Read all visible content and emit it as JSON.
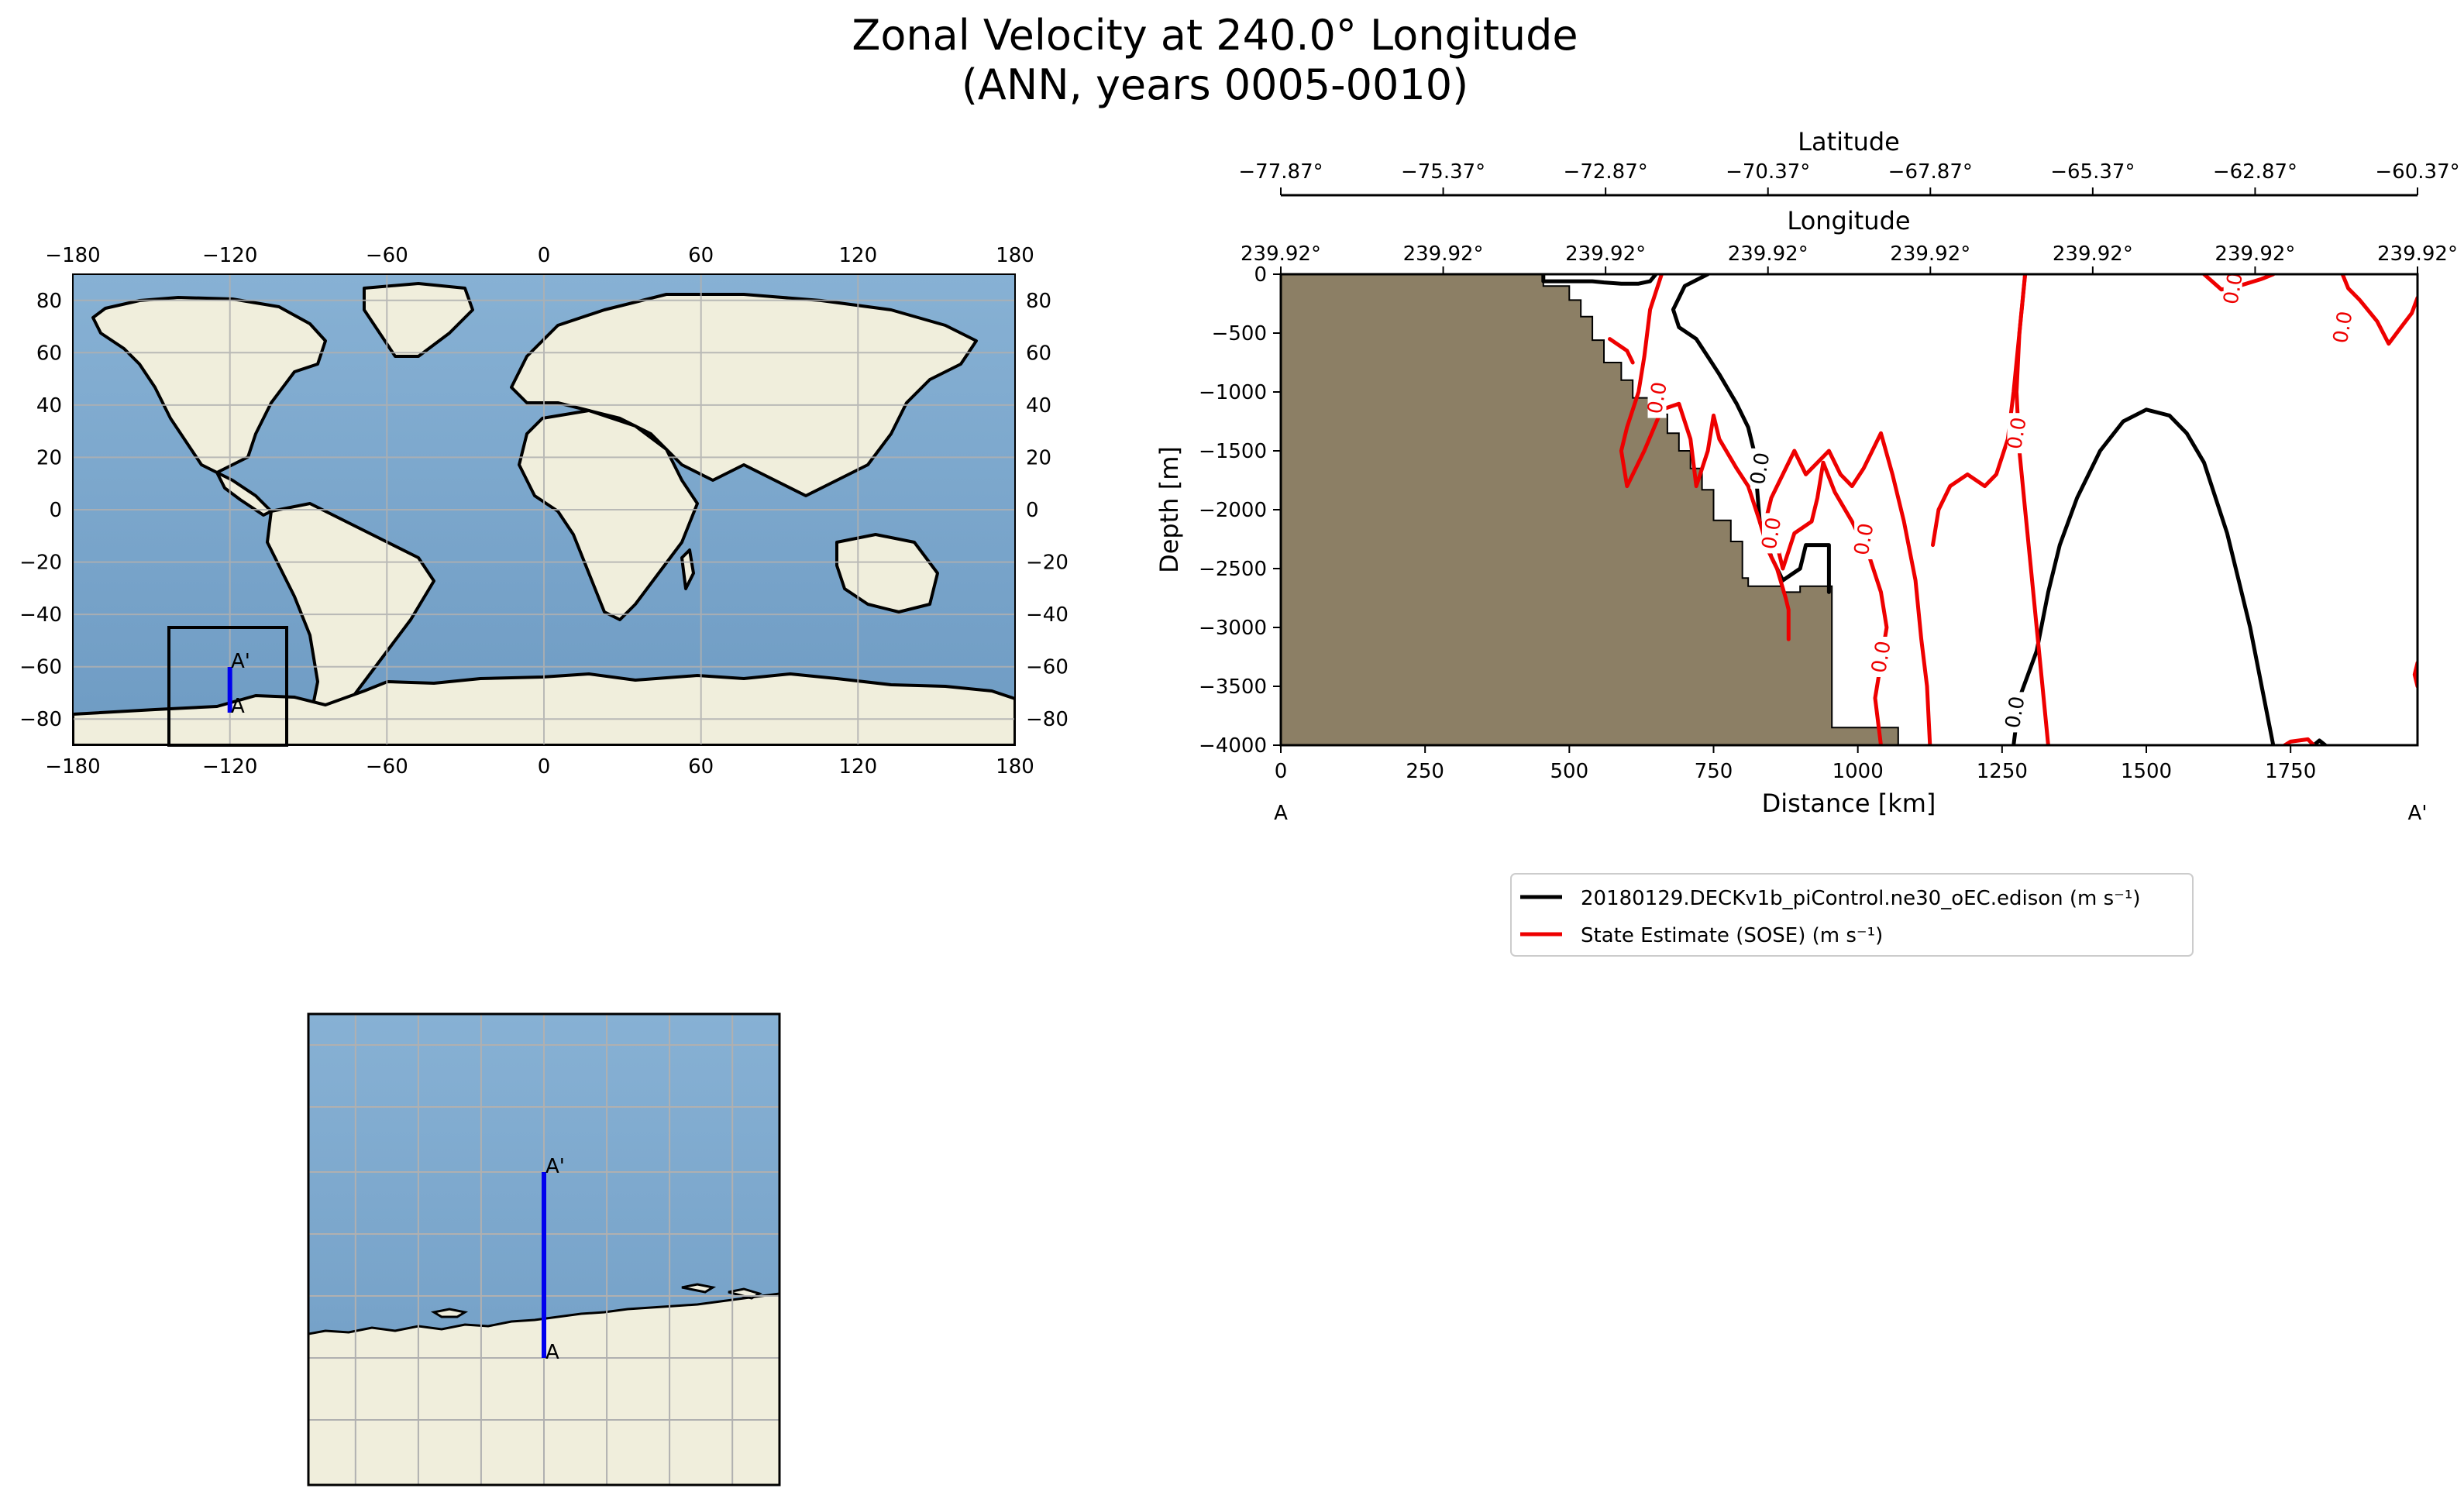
{
  "title": {
    "line1": "Zonal Velocity at 240.0° Longitude",
    "line2": "(ANN, years 0005-0010)"
  },
  "colors": {
    "ocean": "#7aa6cc",
    "land": "#f0eedc",
    "bathymetry": "#8c7f65",
    "transect": "#0000ee",
    "model_line": "#000000",
    "obs_line": "#ee0000",
    "grid": "#b0b0b0"
  },
  "chart_data": [
    {
      "type": "map",
      "name": "global-map",
      "projection": "PlateCarree",
      "xlim": [
        -180,
        180
      ],
      "ylim": [
        -90,
        90
      ],
      "xticks": [
        -180,
        -120,
        -60,
        0,
        60,
        120,
        180
      ],
      "yticks": [
        -80,
        -60,
        -40,
        -20,
        0,
        20,
        40,
        60,
        80
      ],
      "inset_box": {
        "lon": [
          -145,
          -100
        ],
        "lat": [
          -90,
          -45
        ]
      },
      "transect": {
        "lon": -120,
        "lat_start": -77.87,
        "lat_end": -60.37
      },
      "labels": {
        "start": "A",
        "end": "A'"
      }
    },
    {
      "type": "map",
      "name": "inset-map",
      "lon_range": [
        -145,
        -100
      ],
      "lat_range": [
        -90,
        -45
      ],
      "transect": {
        "lon": -120,
        "lat_start": -77.87,
        "lat_end": -60.37
      },
      "labels": {
        "start": "A",
        "end": "A'"
      }
    },
    {
      "type": "contour-section",
      "name": "velocity-section",
      "xlabel": "Distance [km]",
      "ylabel": "Depth [m]",
      "xlim": [
        0,
        1970
      ],
      "ylim": [
        -4000,
        0
      ],
      "xticks": [
        0,
        250,
        500,
        750,
        1000,
        1250,
        1500,
        1750
      ],
      "yticks": [
        0,
        -500,
        -1000,
        -1500,
        -2000,
        -2500,
        -3000,
        -3500,
        -4000
      ],
      "start_label": "A",
      "end_label": "A'",
      "top_axis_1": {
        "label": "Latitude",
        "ticks": [
          "-77.87°",
          "-75.37°",
          "-72.87°",
          "-70.37°",
          "-67.87°",
          "-65.37°",
          "-62.87°",
          "-60.37°"
        ]
      },
      "top_axis_2": {
        "label": "Longitude",
        "ticks": [
          "239.92°",
          "239.92°",
          "239.92°",
          "239.92°",
          "239.92°",
          "239.92°",
          "239.92°",
          "239.92°"
        ]
      },
      "bathymetry": [
        [
          0,
          -4000
        ],
        [
          0,
          0
        ],
        [
          455,
          0
        ],
        [
          455,
          -100
        ],
        [
          500,
          -100
        ],
        [
          500,
          -220
        ],
        [
          520,
          -220
        ],
        [
          520,
          -360
        ],
        [
          540,
          -360
        ],
        [
          540,
          -560
        ],
        [
          560,
          -560
        ],
        [
          560,
          -750
        ],
        [
          590,
          -750
        ],
        [
          590,
          -900
        ],
        [
          610,
          -900
        ],
        [
          610,
          -1050
        ],
        [
          640,
          -1050
        ],
        [
          640,
          -1190
        ],
        [
          670,
          -1190
        ],
        [
          670,
          -1350
        ],
        [
          690,
          -1350
        ],
        [
          690,
          -1500
        ],
        [
          710,
          -1500
        ],
        [
          710,
          -1650
        ],
        [
          730,
          -1650
        ],
        [
          730,
          -1830
        ],
        [
          750,
          -1830
        ],
        [
          750,
          -2090
        ],
        [
          780,
          -2090
        ],
        [
          780,
          -2270
        ],
        [
          800,
          -2270
        ],
        [
          800,
          -2580
        ],
        [
          810,
          -2580
        ],
        [
          810,
          -2650
        ],
        [
          870,
          -2650
        ],
        [
          870,
          -2700
        ],
        [
          900,
          -2700
        ],
        [
          900,
          -2650
        ],
        [
          955,
          -2650
        ],
        [
          955,
          -3850
        ],
        [
          1070,
          -3850
        ],
        [
          1070,
          -4000
        ]
      ],
      "contour_levels_label": "0.0",
      "series": [
        {
          "name": "20180129.DECKv1b_piControl.ne30_oEC.edison (m s⁻¹)",
          "color": "#000000",
          "contours": [
            [
              [
                455,
                0
              ],
              [
                455,
                -60
              ],
              [
                540,
                -60
              ],
              [
                560,
                -70
              ],
              [
                590,
                -80
              ],
              [
                620,
                -80
              ],
              [
                640,
                -60
              ],
              [
                650,
                0
              ]
            ],
            [
              [
                740,
                0
              ],
              [
                700,
                -100
              ],
              [
                680,
                -300
              ],
              [
                690,
                -450
              ],
              [
                720,
                -550
              ],
              [
                740,
                -700
              ],
              [
                760,
                -850
              ],
              [
                790,
                -1100
              ],
              [
                810,
                -1300
              ],
              [
                820,
                -1500
              ],
              [
                825,
                -1800
              ],
              [
                830,
                -2100
              ],
              [
                850,
                -2400
              ],
              [
                870,
                -2600
              ],
              [
                900,
                -2500
              ],
              [
                910,
                -2300
              ],
              [
                950,
                -2300
              ],
              [
                950,
                -2700
              ]
            ],
            [
              [
                1270,
                -4000
              ],
              [
                1280,
                -3600
              ],
              [
                1310,
                -3200
              ],
              [
                1330,
                -2700
              ],
              [
                1350,
                -2300
              ],
              [
                1380,
                -1900
              ],
              [
                1420,
                -1500
              ],
              [
                1460,
                -1250
              ],
              [
                1500,
                -1150
              ],
              [
                1540,
                -1200
              ],
              [
                1570,
                -1350
              ],
              [
                1600,
                -1600
              ],
              [
                1620,
                -1900
              ],
              [
                1640,
                -2200
              ],
              [
                1660,
                -2600
              ],
              [
                1680,
                -3000
              ],
              [
                1700,
                -3500
              ],
              [
                1720,
                -4000
              ]
            ],
            [
              [
                1790,
                -4000
              ],
              [
                1800,
                -3960
              ],
              [
                1810,
                -4000
              ]
            ]
          ],
          "labels": [
            {
              "x": 830,
              "y": -1650,
              "text": "0.0"
            },
            {
              "x": 1272,
              "y": -3720,
              "text": "0.0"
            }
          ]
        },
        {
          "name": "State Estimate (SOSE) (m s⁻¹)",
          "color": "#ee0000",
          "contours": [
            [
              [
                570,
                -550
              ],
              [
                600,
                -650
              ],
              [
                610,
                -750
              ]
            ],
            [
              [
                660,
                0
              ],
              [
                640,
                -300
              ],
              [
                630,
                -700
              ],
              [
                620,
                -1000
              ],
              [
                600,
                -1300
              ],
              [
                590,
                -1500
              ],
              [
                600,
                -1800
              ],
              [
                630,
                -1500
              ],
              [
                660,
                -1150
              ],
              [
                690,
                -1100
              ],
              [
                710,
                -1400
              ],
              [
                720,
                -1800
              ],
              [
                740,
                -1500
              ],
              [
                750,
                -1200
              ],
              [
                760,
                -1400
              ],
              [
                790,
                -1650
              ],
              [
                810,
                -1800
              ],
              [
                830,
                -2100
              ],
              [
                845,
                -2350
              ],
              [
                860,
                -2500
              ],
              [
                875,
                -2750
              ],
              [
                880,
                -2850
              ],
              [
                880,
                -3100
              ]
            ],
            [
              [
                1040,
                -4000
              ],
              [
                1030,
                -3600
              ],
              [
                1040,
                -3300
              ],
              [
                1050,
                -3000
              ],
              [
                1040,
                -2700
              ],
              [
                1020,
                -2400
              ],
              [
                990,
                -2100
              ],
              [
                960,
                -1850
              ],
              [
                940,
                -1600
              ],
              [
                930,
                -1900
              ],
              [
                920,
                -2100
              ],
              [
                890,
                -2200
              ],
              [
                870,
                -2500
              ],
              [
                860,
                -2300
              ],
              [
                840,
                -2100
              ],
              [
                850,
                -1900
              ],
              [
                870,
                -1700
              ],
              [
                890,
                -1500
              ],
              [
                910,
                -1700
              ],
              [
                930,
                -1600
              ],
              [
                950,
                -1500
              ],
              [
                970,
                -1700
              ],
              [
                990,
                -1800
              ],
              [
                1010,
                -1650
              ],
              [
                1040,
                -1350
              ],
              [
                1060,
                -1700
              ],
              [
                1080,
                -2100
              ],
              [
                1100,
                -2600
              ],
              [
                1110,
                -3100
              ],
              [
                1120,
                -3500
              ],
              [
                1125,
                -4000
              ]
            ],
            [
              [
                1130,
                -2300
              ],
              [
                1140,
                -2000
              ],
              [
                1160,
                -1800
              ],
              [
                1190,
                -1700
              ],
              [
                1220,
                -1800
              ],
              [
                1240,
                -1700
              ],
              [
                1260,
                -1400
              ],
              [
                1270,
                -1000
              ],
              [
                1280,
                -500
              ],
              [
                1290,
                0
              ]
            ],
            [
              [
                1330,
                -4000
              ],
              [
                1320,
                -3500
              ],
              [
                1310,
                -3000
              ],
              [
                1300,
                -2500
              ],
              [
                1290,
                -2000
              ],
              [
                1280,
                -1500
              ],
              [
                1275,
                -1000
              ],
              [
                1280,
                -500
              ],
              [
                1290,
                0
              ]
            ],
            [
              [
                1600,
                0
              ],
              [
                1630,
                -130
              ],
              [
                1660,
                -100
              ],
              [
                1700,
                -40
              ],
              [
                1720,
                0
              ]
            ],
            [
              [
                1840,
                0
              ],
              [
                1850,
                -120
              ],
              [
                1870,
                -220
              ],
              [
                1900,
                -400
              ],
              [
                1920,
                -590
              ],
              [
                1940,
                -460
              ],
              [
                1960,
                -330
              ],
              [
                1970,
                -200
              ]
            ],
            [
              [
                1740,
                -4000
              ],
              [
                1750,
                -3970
              ],
              [
                1780,
                -3950
              ],
              [
                1790,
                -4000
              ]
            ],
            [
              [
                1970,
                -3300
              ],
              [
                1965,
                -3400
              ],
              [
                1970,
                -3500
              ]
            ]
          ],
          "labels": [
            {
              "x": 652,
              "y": -1050,
              "text": "0.0"
            },
            {
              "x": 850,
              "y": -2200,
              "text": "0.0"
            },
            {
              "x": 1040,
              "y": -3250,
              "text": "0.0"
            },
            {
              "x": 1010,
              "y": -2250,
              "text": "0.0"
            },
            {
              "x": 1275,
              "y": -1350,
              "text": "0.0"
            },
            {
              "x": 1650,
              "y": -120,
              "text": "0.0"
            },
            {
              "x": 1840,
              "y": -450,
              "text": "0.0"
            }
          ]
        }
      ]
    }
  ]
}
